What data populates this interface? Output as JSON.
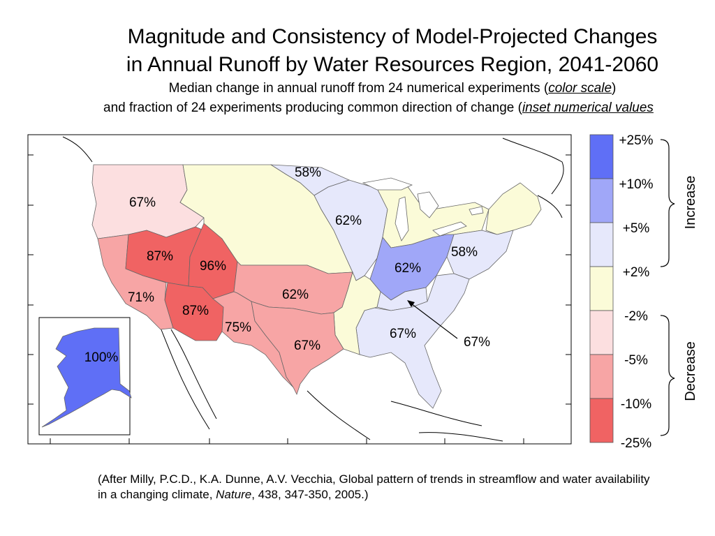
{
  "title": {
    "line1": "Magnitude and Consistency of Model-Projected Changes",
    "line2": "in Annual Runoff by Water Resources Region, 2041-2060",
    "line3_prefix": "Median change in annual runoff from 24 numerical experiments (",
    "line3_link": "color scale",
    "line3_suffix": ")",
    "line4_prefix": "and fraction of 24 experiments producing common direction of change (",
    "line4_link": "inset numerical values"
  },
  "colors": {
    "plus25": "#5f6ff6",
    "plus10": "#a0a7f8",
    "plus5": "#e6e8fb",
    "near_zero": "#fbfbd8",
    "minus5": "#fcdfe0",
    "minus10": "#f7a5a5",
    "minus25": "#f06363"
  },
  "legend": {
    "bins": [
      {
        "label": "+25%",
        "color": "#5f6ff6"
      },
      {
        "label": "+10%",
        "color": "#a0a7f8"
      },
      {
        "label": "+5%",
        "color": "#e6e8fb"
      },
      {
        "label": "+2%",
        "color": "#fbfbd8"
      },
      {
        "label": "-2%",
        "color": "#fcdfe0"
      },
      {
        "label": "-5%",
        "color": "#f7a5a5"
      },
      {
        "label": "-10%",
        "color": "#f06363"
      }
    ],
    "bottom_label": "-25%",
    "increase_label": "Increase",
    "decrease_label": "Decrease"
  },
  "regions": {
    "pacific_nw": "67%",
    "great_basin": "87%",
    "upper_colorado": "96%",
    "california": "71%",
    "lower_colorado": "87%",
    "rio_grande": "75%",
    "arkansas_red": "62%",
    "texas_gulf": "67%",
    "souris_red_rainy": "58%",
    "upper_mississippi": "62%",
    "ohio": "62%",
    "mid_atlantic": "58%",
    "south_atlantic": "67%",
    "tennessee": "67%",
    "alaska": "100%"
  },
  "citation": {
    "prefix": "(After Milly, P.C.D., K.A. Dunne, A.V. Vecchia, Global pattern of trends in streamflow and water availability in a changing climate, ",
    "journal": "Nature",
    "suffix": ", 438, 347-350, 2005.)"
  }
}
